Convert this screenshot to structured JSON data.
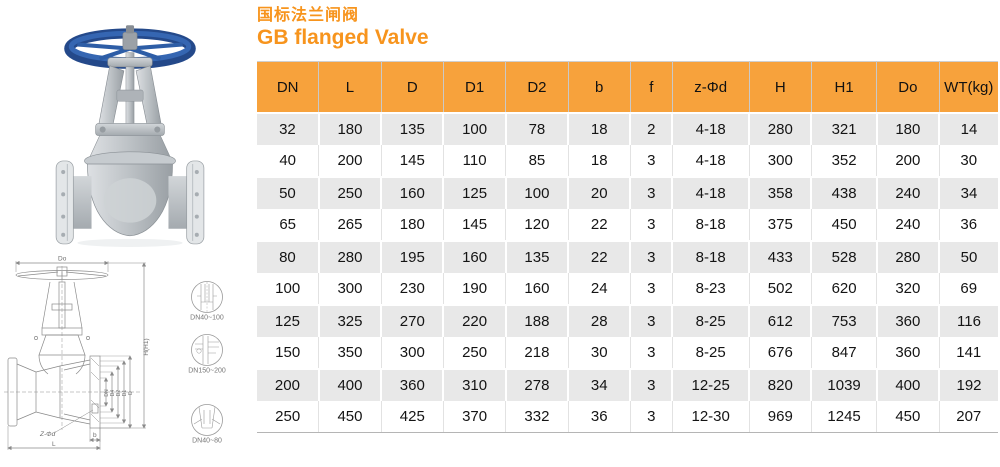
{
  "page": {
    "title_zh": "国标法兰闸阀",
    "title_en": "GB flanged Valve"
  },
  "colors": {
    "accent_orange": "#f7941d",
    "header_orange": "#f7a23c",
    "row_alt_gray": "#e8e8e8"
  },
  "photo": {
    "name": "gate-valve-product-photo",
    "handwheel_color": "#2d5da6"
  },
  "drawing": {
    "dim_top": "Do",
    "dim_height": "H(H1)",
    "dim_diameters": [
      "DN",
      "D4",
      "D2",
      "D1",
      "D"
    ],
    "dim_bolt": "Z-Φd",
    "dim_thickness": "b",
    "dim_length": "L",
    "details": [
      {
        "label": "DN40~100"
      },
      {
        "label": "DN150~200"
      },
      {
        "label": "DN40~80"
      }
    ]
  },
  "table": {
    "headers": [
      "DN",
      "L",
      "D",
      "D1",
      "D2",
      "b",
      "f",
      "z-Φd",
      "H",
      "H1",
      "Do",
      "WT(kg)"
    ],
    "rows": [
      [
        "32",
        "180",
        "135",
        "100",
        "78",
        "18",
        "2",
        "4-18",
        "280",
        "321",
        "180",
        "14"
      ],
      [
        "40",
        "200",
        "145",
        "110",
        "85",
        "18",
        "3",
        "4-18",
        "300",
        "352",
        "200",
        "30"
      ],
      [
        "50",
        "250",
        "160",
        "125",
        "100",
        "20",
        "3",
        "4-18",
        "358",
        "438",
        "240",
        "34"
      ],
      [
        "65",
        "265",
        "180",
        "145",
        "120",
        "22",
        "3",
        "8-18",
        "375",
        "450",
        "240",
        "36"
      ],
      [
        "80",
        "280",
        "195",
        "160",
        "135",
        "22",
        "3",
        "8-18",
        "433",
        "528",
        "280",
        "50"
      ],
      [
        "100",
        "300",
        "230",
        "190",
        "160",
        "24",
        "3",
        "8-23",
        "502",
        "620",
        "320",
        "69"
      ],
      [
        "125",
        "325",
        "270",
        "220",
        "188",
        "28",
        "3",
        "8-25",
        "612",
        "753",
        "360",
        "116"
      ],
      [
        "150",
        "350",
        "300",
        "250",
        "218",
        "30",
        "3",
        "8-25",
        "676",
        "847",
        "360",
        "141"
      ],
      [
        "200",
        "400",
        "360",
        "310",
        "278",
        "34",
        "3",
        "12-25",
        "820",
        "1039",
        "400",
        "192"
      ],
      [
        "250",
        "450",
        "425",
        "370",
        "332",
        "36",
        "3",
        "12-30",
        "969",
        "1245",
        "450",
        "207"
      ]
    ]
  }
}
